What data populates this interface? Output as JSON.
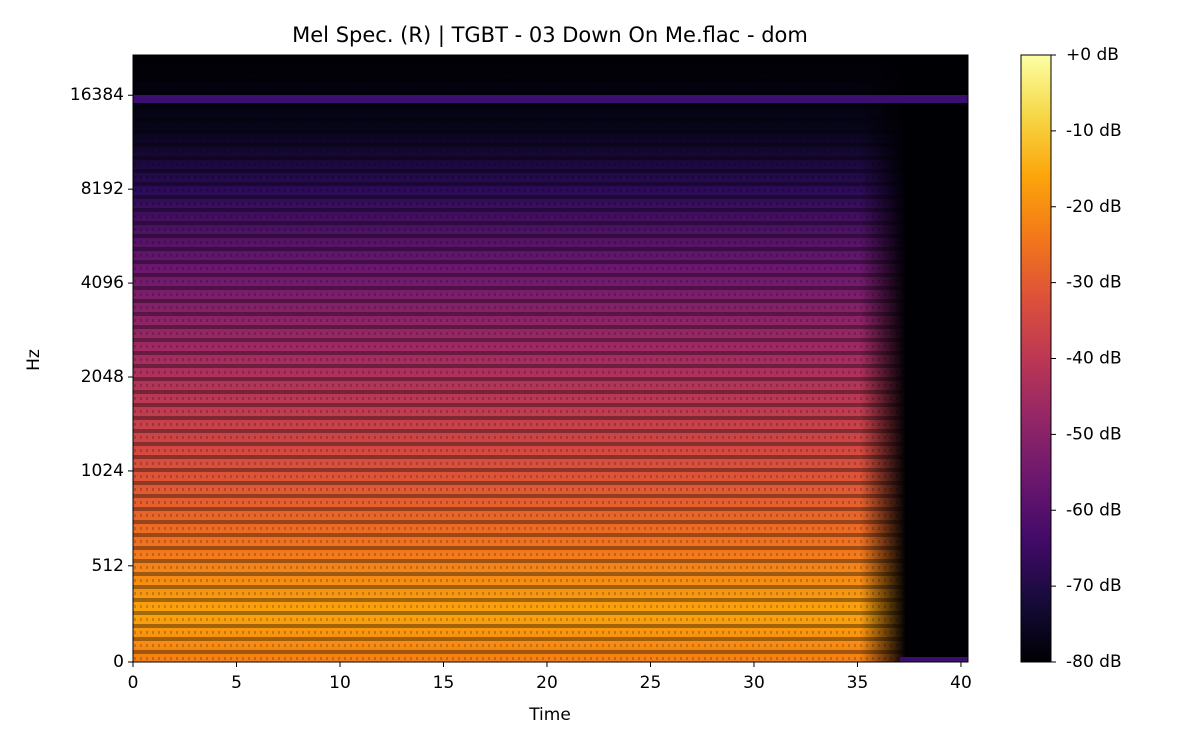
{
  "chart_data": {
    "type": "spectrogram",
    "title": "Mel Spec. (R) | TGBT - 03 Down On Me.flac - dom",
    "xlabel": "Time",
    "ylabel": "Hz",
    "xlim": [
      0,
      40.34
    ],
    "xticks": [
      0,
      5,
      10,
      15,
      20,
      25,
      30,
      35,
      40
    ],
    "ylim": [
      0,
      22050
    ],
    "yscale": "symlog",
    "ybase": 2,
    "ylinthresh": 1000,
    "ylinscale": 1,
    "yticks": [
      0,
      512,
      1024,
      2048,
      4096,
      8192,
      16384
    ],
    "colormap": "inferno",
    "colorbar": {
      "lim": [
        -80,
        0
      ],
      "ticks": [
        {
          "value": 0,
          "label": "+0 dB"
        },
        {
          "value": -10,
          "label": "-10 dB"
        },
        {
          "value": -20,
          "label": "-20 dB"
        },
        {
          "value": -30,
          "label": "-30 dB"
        },
        {
          "value": -40,
          "label": "-40 dB"
        },
        {
          "value": -50,
          "label": "-50 dB"
        },
        {
          "value": -60,
          "label": "-60 dB"
        },
        {
          "value": -70,
          "label": "-70 dB"
        },
        {
          "value": -80,
          "label": "-80 dB"
        }
      ]
    }
  }
}
